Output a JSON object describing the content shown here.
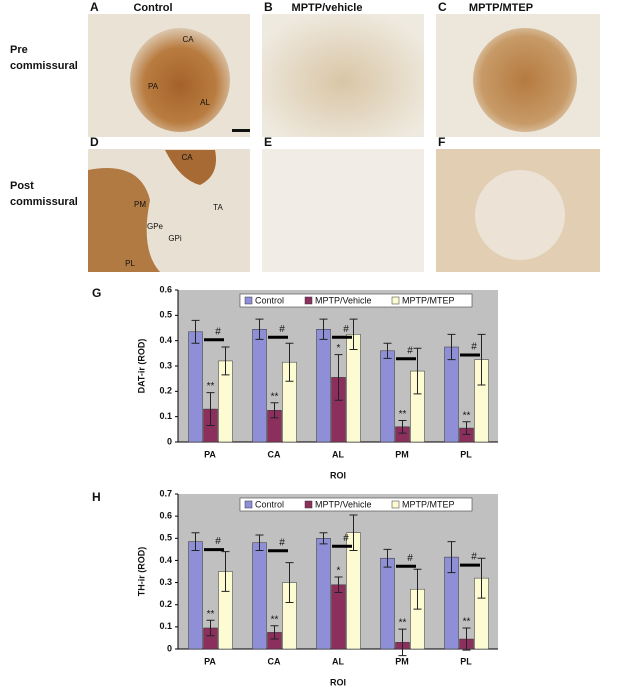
{
  "panels": [
    {
      "letter": "A",
      "title": "Control",
      "regions": [
        "CA",
        "PA",
        "AL"
      ]
    },
    {
      "letter": "B",
      "title": "MPTP/vehicle",
      "regions": []
    },
    {
      "letter": "C",
      "title": "MPTP/MTEP",
      "regions": []
    },
    {
      "letter": "D",
      "title": null,
      "regions": [
        "CA",
        "PM",
        "GPe",
        "GPi",
        "TA",
        "PL"
      ]
    },
    {
      "letter": "E",
      "title": null,
      "regions": []
    },
    {
      "letter": "F",
      "title": null,
      "regions": []
    }
  ],
  "row_labels": [
    [
      "Pre",
      "commissural"
    ],
    [
      "Post",
      "commissural"
    ]
  ],
  "chart_data": [
    {
      "type": "bar",
      "panel": "G",
      "xlabel": "ROI",
      "ylabel": "DAT-ir (ROD)",
      "categories": [
        "PA",
        "CA",
        "AL",
        "PM",
        "PL"
      ],
      "ylim": [
        0,
        0.6
      ],
      "yticks": [
        0,
        0.1,
        0.2,
        0.3,
        0.4,
        0.5,
        0.6
      ],
      "series": [
        {
          "name": "Control",
          "color": "#8e8fd6",
          "values": [
            0.435,
            0.445,
            0.445,
            0.36,
            0.375
          ],
          "errors": [
            0.045,
            0.04,
            0.04,
            0.03,
            0.05
          ]
        },
        {
          "name": "MPTP/Vehicle",
          "color": "#8c2f5c",
          "values": [
            0.13,
            0.125,
            0.255,
            0.06,
            0.055
          ],
          "errors": [
            0.065,
            0.03,
            0.09,
            0.025,
            0.025
          ],
          "annotations": [
            "**",
            "**",
            "*",
            "**",
            "**"
          ]
        },
        {
          "name": "MPTP/MTEP",
          "color": "#fdfbd2",
          "values": [
            0.32,
            0.315,
            0.425,
            0.28,
            0.325
          ],
          "errors": [
            0.055,
            0.075,
            0.06,
            0.09,
            0.1
          ]
        }
      ],
      "comparison_labels": [
        "#",
        "#",
        "#",
        "#",
        "#"
      ]
    },
    {
      "type": "bar",
      "panel": "H",
      "xlabel": "ROI",
      "ylabel": "TH-ir (ROD)",
      "categories": [
        "PA",
        "CA",
        "AL",
        "PM",
        "PL"
      ],
      "ylim": [
        0,
        0.7
      ],
      "yticks": [
        0,
        0.1,
        0.2,
        0.3,
        0.4,
        0.5,
        0.6,
        0.7
      ],
      "series": [
        {
          "name": "Control",
          "color": "#8e8fd6",
          "values": [
            0.485,
            0.48,
            0.5,
            0.41,
            0.415
          ],
          "errors": [
            0.04,
            0.035,
            0.025,
            0.04,
            0.07
          ]
        },
        {
          "name": "MPTP/Vehicle",
          "color": "#8c2f5c",
          "values": [
            0.095,
            0.075,
            0.29,
            0.03,
            0.045
          ],
          "errors": [
            0.035,
            0.03,
            0.035,
            0.06,
            0.05
          ],
          "annotations": [
            "**",
            "**",
            "*",
            "**",
            "**"
          ]
        },
        {
          "name": "MPTP/MTEP",
          "color": "#fdfbd2",
          "values": [
            0.35,
            0.3,
            0.525,
            0.27,
            0.32
          ],
          "errors": [
            0.09,
            0.09,
            0.08,
            0.09,
            0.09
          ]
        }
      ],
      "comparison_labels": [
        "#",
        "#",
        "#",
        "#",
        "#"
      ]
    }
  ]
}
